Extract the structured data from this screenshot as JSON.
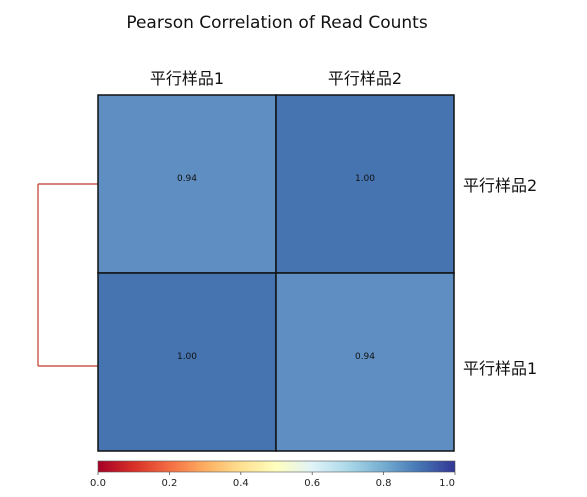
{
  "chart_data": {
    "type": "heatmap",
    "title": "Pearson Correlation of Read Counts",
    "x_labels": [
      "平行样品1",
      "平行样品2"
    ],
    "y_labels": [
      "平行样品2",
      "平行样品1"
    ],
    "values": [
      [
        0.94,
        1.0
      ],
      [
        1.0,
        0.94
      ]
    ],
    "value_labels": [
      [
        "0.94",
        "1.00"
      ],
      [
        "1.00",
        "0.94"
      ]
    ],
    "colorbar": {
      "range": [
        0,
        1
      ],
      "ticks": [
        0.0,
        0.2,
        0.4,
        0.6,
        0.8,
        1.0
      ],
      "tick_labels": [
        "0.0",
        "0.2",
        "0.4",
        "0.6",
        "0.8",
        "1.0"
      ],
      "colormap": "RdYlBu",
      "stops": [
        "#a50026",
        "#d73027",
        "#f46d43",
        "#fdae61",
        "#fee090",
        "#ffffbf",
        "#e0f3f8",
        "#abd9e9",
        "#74add1",
        "#4575b4",
        "#313695"
      ]
    },
    "cell_colors": [
      [
        "#5f8fc2",
        "#4574b0"
      ],
      [
        "#4574b0",
        "#5f8fc2"
      ]
    ],
    "dendrogram": {
      "side": "left",
      "color": "#c0392b"
    }
  }
}
